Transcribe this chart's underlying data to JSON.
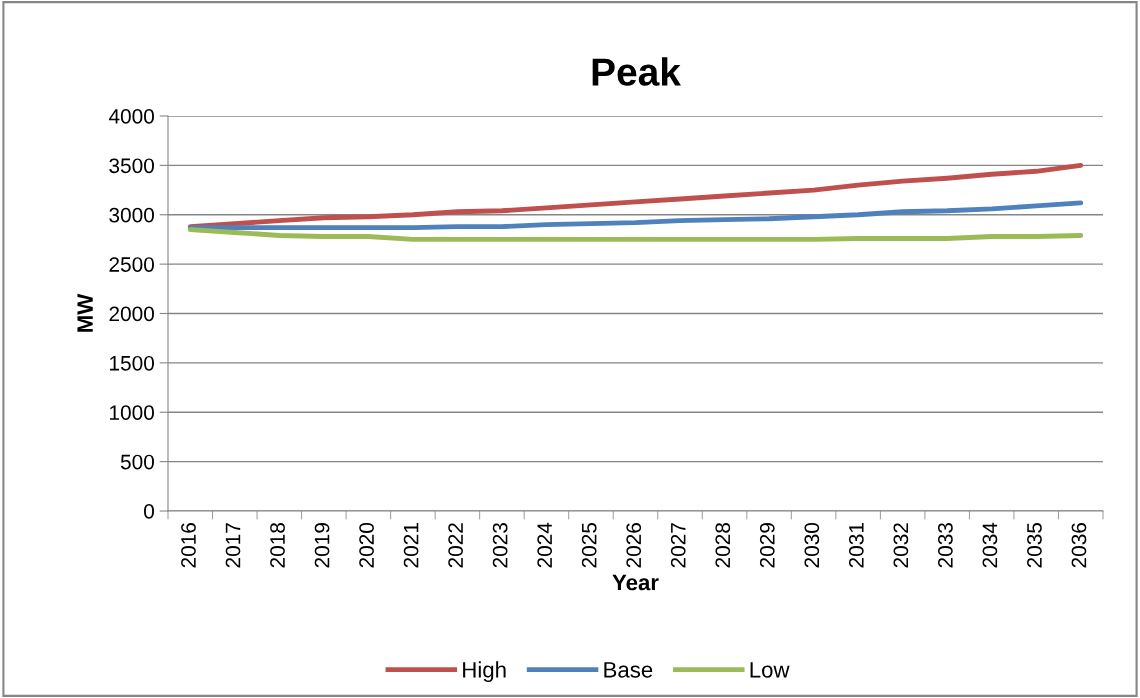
{
  "chart_data": {
    "type": "line",
    "title": "Peak",
    "xlabel": "Year",
    "ylabel": "MW",
    "categories": [
      "2016",
      "2017",
      "2018",
      "2019",
      "2020",
      "2021",
      "2022",
      "2023",
      "2024",
      "2025",
      "2026",
      "2027",
      "2028",
      "2029",
      "2030",
      "2031",
      "2032",
      "2033",
      "2034",
      "2035",
      "2036"
    ],
    "series": [
      {
        "name": "High",
        "color": "#c0504d",
        "values": [
          2880,
          2910,
          2940,
          2970,
          2980,
          3000,
          3030,
          3040,
          3070,
          3100,
          3130,
          3160,
          3190,
          3220,
          3250,
          3300,
          3340,
          3370,
          3410,
          3440,
          3500
        ]
      },
      {
        "name": "Base",
        "color": "#4f81bd",
        "values": [
          2870,
          2870,
          2870,
          2870,
          2870,
          2870,
          2880,
          2880,
          2900,
          2910,
          2920,
          2940,
          2950,
          2960,
          2980,
          3000,
          3030,
          3040,
          3060,
          3090,
          3120
        ]
      },
      {
        "name": "Low",
        "color": "#9bbb59",
        "values": [
          2850,
          2820,
          2790,
          2780,
          2780,
          2750,
          2750,
          2750,
          2750,
          2750,
          2750,
          2750,
          2750,
          2750,
          2750,
          2760,
          2760,
          2760,
          2780,
          2780,
          2790
        ]
      }
    ],
    "ylim": [
      0,
      4000
    ],
    "yticks": [
      0,
      500,
      1000,
      1500,
      2000,
      2500,
      3000,
      3500,
      4000
    ],
    "grid": "y",
    "legend": "bottom",
    "marker": "none",
    "line_style": "solid"
  }
}
